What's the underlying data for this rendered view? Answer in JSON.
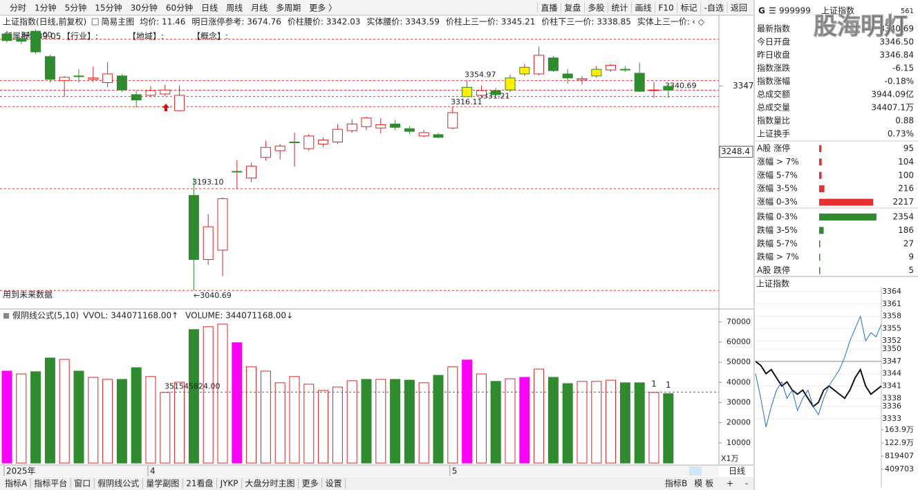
{
  "toolbar": {
    "left": [
      "分时",
      "1分钟",
      "5分钟",
      "15分钟",
      "30分钟",
      "60分钟",
      "日线",
      "周线",
      "月线",
      "多周期",
      "更多 〉"
    ],
    "active_index": 6,
    "right": [
      "直播",
      "复盘",
      "多股",
      "统计",
      "画线",
      "F10",
      "标记",
      "-自选",
      "返回"
    ]
  },
  "info_bar": {
    "title": "上证指数(日线,前复权)",
    "mode": "简易主图",
    "items": [
      "均价: 11.46",
      "明日涨停参考: 3674.76",
      "价柱腰价: 3342.03",
      "实体腰价: 3343.59",
      "价柱上三一价: 3345.21",
      "价柱下三一价: 3338.85",
      "实体上三一价: "
    ]
  },
  "info_bar2": [
    "所属板块39.05",
    "【行业】:",
    "【地域】:",
    "【概念】:"
  ],
  "future_note": "用到未来数据",
  "main_chart": {
    "type": "candlestick",
    "ylim": [
      3015,
      3453
    ],
    "axis_labels": [
      3347,
      3248.4
    ],
    "ohlc": [
      [
        3425,
        3430,
        3412,
        3415
      ],
      [
        3418,
        3420,
        3410,
        3414
      ],
      [
        3429,
        3432,
        3395,
        3398
      ],
      [
        3391,
        3394,
        3352,
        3357
      ],
      [
        3355,
        3362,
        3331,
        3360
      ],
      [
        3362,
        3372,
        3352,
        3362
      ],
      [
        3357,
        3376,
        3353,
        3359
      ],
      [
        3352,
        3383,
        3345,
        3365
      ],
      [
        3362,
        3365,
        3338,
        3341
      ],
      [
        3334,
        3340,
        3315,
        3326
      ],
      [
        3333,
        3347,
        3330,
        3340
      ],
      [
        3335,
        3349,
        3332,
        3341
      ],
      [
        3310,
        3348,
        3309,
        3333
      ],
      [
        3183,
        3209,
        3040.69,
        3087
      ],
      [
        3087,
        3155,
        3079,
        3136
      ],
      [
        3101,
        3180,
        3062,
        3178
      ],
      [
        3218,
        3236,
        3192,
        3219
      ],
      [
        3209,
        3232,
        3203,
        3227
      ],
      [
        3240,
        3265,
        3235,
        3255
      ],
      [
        3250,
        3260,
        3237,
        3257
      ],
      [
        3262,
        3277,
        3226,
        3263
      ],
      [
        3253,
        3275,
        3250,
        3272
      ],
      [
        3260,
        3270,
        3255,
        3266
      ],
      [
        3263,
        3290,
        3260,
        3282
      ],
      [
        3280,
        3297,
        3277,
        3290
      ],
      [
        3286,
        3301,
        3281,
        3299
      ],
      [
        3284,
        3299,
        3276,
        3289
      ],
      [
        3290,
        3296,
        3281,
        3285
      ],
      [
        3283,
        3287,
        3275,
        3279
      ],
      [
        3272,
        3281,
        3270,
        3277
      ],
      [
        3274,
        3277,
        3269,
        3270
      ],
      [
        3284,
        3316.11,
        3282,
        3307
      ],
      [
        3331,
        3354.97,
        3331,
        3345
      ],
      [
        3333,
        3348,
        3331.21,
        3340
      ],
      [
        3340,
        3344,
        3332,
        3334
      ],
      [
        3341,
        3364,
        3338,
        3359
      ],
      [
        3375,
        3380,
        3362,
        3365
      ],
      [
        3365,
        3406,
        3363,
        3393
      ],
      [
        3389,
        3392,
        3368,
        3370
      ],
      [
        3365,
        3372,
        3350,
        3359
      ],
      [
        3356,
        3362,
        3349,
        3358
      ],
      [
        3362,
        3377,
        3359,
        3372
      ],
      [
        3371,
        3380,
        3368,
        3378
      ],
      [
        3372,
        3377,
        3368,
        3372
      ],
      [
        3366,
        3382,
        3338,
        3339
      ],
      [
        3341,
        3353,
        3329,
        3341
      ],
      [
        3346.5,
        3350,
        3329,
        3340.69
      ]
    ],
    "styles": [
      "down",
      "down",
      "down",
      "down",
      "up",
      "down",
      "up",
      "up",
      "down",
      "down",
      "up",
      "up",
      "up",
      "down",
      "up",
      "up",
      "flat",
      "up",
      "up",
      "up",
      "flat",
      "up",
      "up",
      "up",
      "up",
      "up",
      "up",
      "down",
      "down",
      "up",
      "down",
      "up",
      "flat",
      "up",
      "down",
      "flat",
      "flat",
      "up",
      "down",
      "down",
      "up",
      "flat",
      "up",
      "down",
      "down",
      "up",
      "down"
    ],
    "levels": [
      {
        "value": 3417,
        "label": "3417.00"
      },
      {
        "value": 3354.97,
        "label": "3354.97"
      },
      {
        "value": 3331.21,
        "label": "3331.21"
      },
      {
        "value": 3316.11,
        "label": "3316.11"
      },
      {
        "value": 3340.69,
        "label": "3340.69"
      },
      {
        "value": 3193.1,
        "label": "3193.10"
      },
      {
        "value": 3040.69,
        "label": "←3040.69"
      }
    ]
  },
  "volume_chart": {
    "type": "bar",
    "name": "假阴线公式(5,10)",
    "vvol": "VVOL: 344071168.00↑",
    "volume": "VOLUME: 344071168.00↓",
    "unit": "X1万",
    "ylim": [
      0,
      75400
    ],
    "yticks": [
      10000,
      20000,
      30000,
      40000,
      50000,
      60000,
      70000
    ],
    "values": [
      45600,
      44200,
      45300,
      52100,
      51400,
      45600,
      42500,
      41500,
      41500,
      47300,
      42900,
      35000,
      40100,
      66200,
      67600,
      68900,
      59700,
      47700,
      45600,
      39800,
      42900,
      39100,
      36000,
      37700,
      40800,
      41500,
      41500,
      41500,
      41100,
      39800,
      43500,
      47700,
      51100,
      44200,
      40500,
      41800,
      42500,
      46600,
      42500,
      39400,
      40500,
      40500,
      41100,
      39800,
      39800,
      35000,
      34407.1
    ],
    "styles": [
      "pink",
      "up",
      "down",
      "down",
      "up",
      "down",
      "up",
      "up",
      "down",
      "down",
      "up",
      "up",
      "up",
      "down",
      "up",
      "up",
      "pink",
      "up",
      "up",
      "up",
      "up",
      "up",
      "up",
      "up",
      "up",
      "down",
      "up",
      "down",
      "down",
      "up",
      "down",
      "up",
      "pink",
      "up",
      "down",
      "up",
      "pink",
      "up",
      "down",
      "down",
      "up",
      "up",
      "up",
      "down",
      "down",
      "up",
      "down"
    ],
    "level": {
      "value": 35154.5824,
      "label": "351545824.00"
    },
    "bar_notes": [
      "1",
      "1"
    ]
  },
  "x_axis": [
    "2025年",
    "4",
    "5"
  ],
  "bottom_tabs": [
    "指标A",
    "指标平台",
    "窗口",
    "假阴线公式",
    "量学副图",
    "21看盘",
    "JYKP",
    "大盘分时主图",
    "更多",
    "设置"
  ],
  "bottom_active": 3,
  "bottom_right": [
    "指标B",
    "模",
    "板"
  ],
  "period": "日线",
  "zoom": [
    "+",
    "-"
  ],
  "panel": {
    "badge": "G",
    "menu": "☰",
    "code": "999999",
    "name": "上证指数",
    "tag": "561",
    "watermark": "股海明灯",
    "stats": [
      [
        "最新指数",
        "3340.69"
      ],
      [
        "今日开盘",
        "3346.50"
      ],
      [
        "昨日收盘",
        "3346.84"
      ],
      [
        "指数涨跌",
        "-6.15"
      ],
      [
        "指数涨幅",
        "-0.18%"
      ],
      [
        "总成交额",
        "3944.09亿"
      ],
      [
        "总成交量",
        "34407.1万"
      ],
      [
        "指数量比",
        "0.88"
      ],
      [
        "上证换手",
        "0.73%"
      ]
    ],
    "stat_colors": [
      "#1a9a1a",
      "#1a9a1a",
      "#222",
      "#1a9a1a",
      "#1a9a1a",
      "#222",
      "#222",
      "#1a9a1a",
      "#222"
    ],
    "breadth": [
      {
        "label": "A股 涨停",
        "value": 95,
        "color": "#e83030"
      },
      {
        "label": "涨幅 > 7%",
        "value": 104,
        "color": "#e83030"
      },
      {
        "label": "涨幅 5-7%",
        "value": 100,
        "color": "#e83030"
      },
      {
        "label": "涨幅 3-5%",
        "value": 216,
        "color": "#e83030"
      },
      {
        "label": "涨幅 0-3%",
        "value": 2217,
        "color": "#e83030"
      },
      {
        "label": "跌幅 0-3%",
        "value": 2354,
        "color": "#2e8b2e"
      },
      {
        "label": "跌幅 3-5%",
        "value": 186,
        "color": "#2e8b2e"
      },
      {
        "label": "跌幅 5-7%",
        "value": 27,
        "color": "#2e8b2e"
      },
      {
        "label": "跌幅 > 7%",
        "value": 9,
        "color": "#2e8b2e"
      },
      {
        "label": "A股 跌停",
        "value": 5,
        "color": "#2e8b2e"
      }
    ],
    "mini": {
      "type": "line",
      "title": "上证指数",
      "ylim": [
        3331,
        3365
      ],
      "base": 3347,
      "yticks": [
        3364,
        3361,
        3358,
        3355,
        3352,
        3350,
        3347,
        3344,
        3341,
        3338,
        3336,
        3333
      ],
      "vlim": [
        0,
        1811000
      ],
      "vticks": [
        {
          "value": 1639000,
          "label": "163.9万"
        },
        {
          "value": 1229000,
          "label": "122.9万"
        },
        {
          "value": 819407,
          "label": "819407"
        },
        {
          "value": 409703,
          "label": "409703"
        }
      ],
      "series": [
        {
          "color": "#111",
          "values": [
            3347,
            3346,
            3344,
            3345,
            3343,
            3341,
            3342,
            3340,
            3339,
            3340,
            3338,
            3336,
            3337,
            3340,
            3341,
            3340,
            3339,
            3338,
            3340,
            3343,
            3345,
            3341,
            3339,
            3340,
            3341
          ]
        },
        {
          "color": "#1a6fd0",
          "values": [
            3344,
            3338,
            3331,
            3336,
            3340,
            3342,
            3338,
            3340,
            3335,
            3338,
            3340,
            3336,
            3334,
            3338,
            3341,
            3343,
            3345,
            3348,
            3352,
            3355,
            3358,
            3352,
            3354,
            3353,
            3356
          ]
        }
      ]
    }
  }
}
